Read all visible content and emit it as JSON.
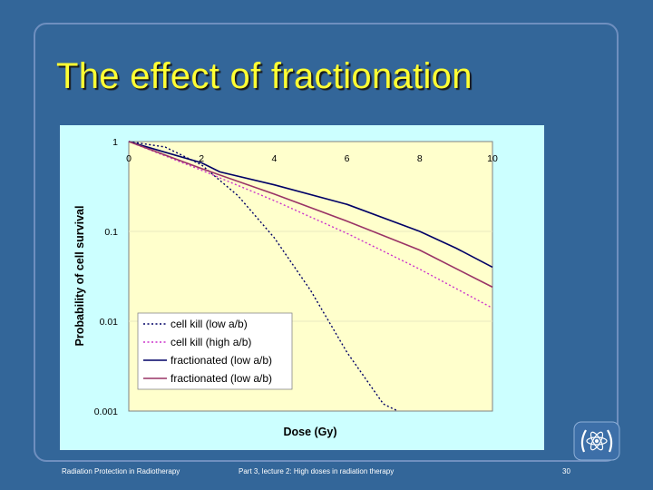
{
  "slide": {
    "title": "The effect of fractionation",
    "footer_left": "Radiation Protection in Radiotherapy",
    "footer_mid": "Part 3, lecture 2: High doses in radiation therapy",
    "page_number": "30"
  },
  "colors": {
    "background": "#336699",
    "title": "#ffff33",
    "chart_area": "#ccffff",
    "plot_area": "#ffffcc",
    "series_navy": "#000066",
    "series_purple": "#993366",
    "series_dotted_navy": "#000066",
    "series_dotted_magenta": "#cc33cc"
  },
  "chart_data": {
    "type": "line",
    "title": "",
    "xlabel": "Dose (Gy)",
    "ylabel": "Probability of cell survival",
    "xlim": [
      0,
      10
    ],
    "ylim": [
      0.001,
      1
    ],
    "yscale": "log",
    "x_ticks": [
      "0",
      "2",
      "4",
      "6",
      "8",
      "10"
    ],
    "y_ticks": [
      "1",
      "0.1",
      "0.01",
      "0.001"
    ],
    "x_axis_position": "top",
    "legend_position": "bottom-left",
    "series": [
      {
        "name": "cell kill (low a/b)",
        "style": "dotted",
        "color": "#000066",
        "x": [
          0,
          1,
          2,
          3,
          4,
          5,
          6,
          7,
          7.4
        ],
        "y": [
          1,
          0.87,
          0.55,
          0.25,
          0.085,
          0.022,
          0.0045,
          0.0012,
          0.001
        ]
      },
      {
        "name": "cell kill (high a/b)",
        "style": "dotted",
        "color": "#cc33cc",
        "x": [
          0,
          2,
          4,
          6,
          8,
          10
        ],
        "y": [
          1,
          0.48,
          0.22,
          0.095,
          0.038,
          0.014
        ]
      },
      {
        "name": "fractionated (low a/b)",
        "style": "solid",
        "color": "#000066",
        "x": [
          0,
          1,
          2,
          2.5,
          4,
          6,
          8,
          9,
          10
        ],
        "y": [
          1,
          0.76,
          0.58,
          0.46,
          0.33,
          0.2,
          0.1,
          0.065,
          0.04
        ]
      },
      {
        "name": "fractionated (low a/b)",
        "style": "solid",
        "color": "#993366",
        "x": [
          0,
          2,
          4,
          6,
          8,
          10
        ],
        "y": [
          1,
          0.5,
          0.26,
          0.13,
          0.062,
          0.024
        ]
      }
    ]
  }
}
